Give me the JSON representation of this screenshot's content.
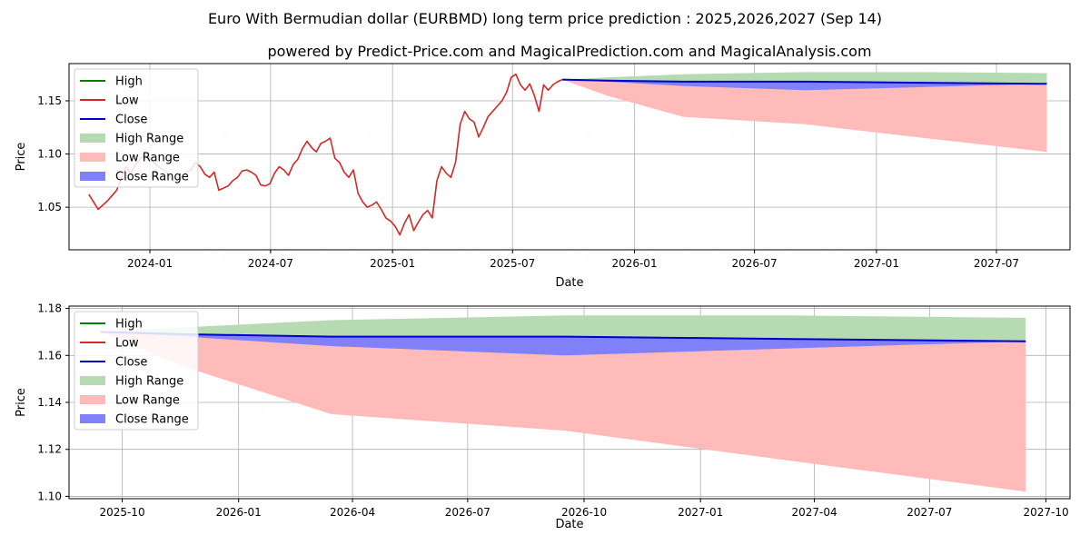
{
  "header": {
    "title": "Euro With Bermudian dollar (EURBMD) long term price prediction : 2025,2026,2027 (Sep 14)",
    "subtitle": "powered by Predict-Price.com and MagicalPrediction.com and MagicalAnalysis.com"
  },
  "watermark": "Predict-Price.com",
  "colors": {
    "high": "#008000",
    "low": "#d62728",
    "close": "#0000cc",
    "high_range": "#b6dbb3",
    "low_range": "#ffbaba",
    "close_range": "#8080f8"
  },
  "chart_data": [
    {
      "type": "line",
      "panel": "top",
      "xlabel": "Date",
      "ylabel": "Price",
      "x_range": [
        "2023-09-01",
        "2027-10-20"
      ],
      "ylim": [
        1.01,
        1.185
      ],
      "x_ticks": [
        "2024-01",
        "2024-07",
        "2025-01",
        "2025-07",
        "2026-01",
        "2026-07",
        "2027-01",
        "2027-07"
      ],
      "y_ticks": [
        1.05,
        1.1,
        1.15
      ],
      "y_tick_labels": [
        "1.05",
        "1.10",
        "1.15"
      ],
      "grid": true,
      "legend": {
        "position": "top-left",
        "entries": [
          "High",
          "Low",
          "Close",
          "High Range",
          "Low Range",
          "Close Range"
        ]
      },
      "history": {
        "series": "Low",
        "points": [
          [
            "2023-10-01",
            1.062
          ],
          [
            "2023-10-08",
            1.055
          ],
          [
            "2023-10-15",
            1.048
          ],
          [
            "2023-10-22",
            1.052
          ],
          [
            "2023-10-29",
            1.056
          ],
          [
            "2023-11-05",
            1.061
          ],
          [
            "2023-11-12",
            1.066
          ],
          [
            "2023-11-19",
            1.078
          ],
          [
            "2023-11-26",
            1.088
          ],
          [
            "2023-12-03",
            1.082
          ],
          [
            "2023-12-10",
            1.09
          ],
          [
            "2023-12-17",
            1.095
          ],
          [
            "2023-12-24",
            1.1
          ],
          [
            "2023-12-31",
            1.097
          ],
          [
            "2024-01-07",
            1.092
          ],
          [
            "2024-01-14",
            1.088
          ],
          [
            "2024-01-21",
            1.085
          ],
          [
            "2024-01-28",
            1.082
          ],
          [
            "2024-02-04",
            1.076
          ],
          [
            "2024-02-11",
            1.072
          ],
          [
            "2024-02-18",
            1.078
          ],
          [
            "2024-02-25",
            1.083
          ],
          [
            "2024-03-03",
            1.085
          ],
          [
            "2024-03-10",
            1.092
          ],
          [
            "2024-03-17",
            1.088
          ],
          [
            "2024-03-24",
            1.081
          ],
          [
            "2024-03-31",
            1.078
          ],
          [
            "2024-04-07",
            1.083
          ],
          [
            "2024-04-14",
            1.066
          ],
          [
            "2024-04-21",
            1.068
          ],
          [
            "2024-04-28",
            1.07
          ],
          [
            "2024-05-05",
            1.075
          ],
          [
            "2024-05-12",
            1.078
          ],
          [
            "2024-05-19",
            1.084
          ],
          [
            "2024-05-26",
            1.085
          ],
          [
            "2024-06-02",
            1.083
          ],
          [
            "2024-06-09",
            1.08
          ],
          [
            "2024-06-16",
            1.071
          ],
          [
            "2024-06-23",
            1.07
          ],
          [
            "2024-06-30",
            1.072
          ],
          [
            "2024-07-07",
            1.082
          ],
          [
            "2024-07-14",
            1.088
          ],
          [
            "2024-07-21",
            1.085
          ],
          [
            "2024-07-28",
            1.08
          ],
          [
            "2024-08-04",
            1.09
          ],
          [
            "2024-08-11",
            1.095
          ],
          [
            "2024-08-18",
            1.105
          ],
          [
            "2024-08-25",
            1.112
          ],
          [
            "2024-09-01",
            1.106
          ],
          [
            "2024-09-08",
            1.102
          ],
          [
            "2024-09-15",
            1.11
          ],
          [
            "2024-09-22",
            1.112
          ],
          [
            "2024-09-29",
            1.115
          ],
          [
            "2024-10-06",
            1.096
          ],
          [
            "2024-10-13",
            1.092
          ],
          [
            "2024-10-20",
            1.083
          ],
          [
            "2024-10-27",
            1.078
          ],
          [
            "2024-11-03",
            1.085
          ],
          [
            "2024-11-10",
            1.063
          ],
          [
            "2024-11-17",
            1.055
          ],
          [
            "2024-11-24",
            1.05
          ],
          [
            "2024-12-01",
            1.052
          ],
          [
            "2024-12-08",
            1.055
          ],
          [
            "2024-12-15",
            1.048
          ],
          [
            "2024-12-22",
            1.04
          ],
          [
            "2024-12-29",
            1.037
          ],
          [
            "2025-01-05",
            1.032
          ],
          [
            "2025-01-12",
            1.024
          ],
          [
            "2025-01-19",
            1.035
          ],
          [
            "2025-01-26",
            1.043
          ],
          [
            "2025-02-02",
            1.028
          ],
          [
            "2025-02-09",
            1.036
          ],
          [
            "2025-02-16",
            1.043
          ],
          [
            "2025-02-23",
            1.047
          ],
          [
            "2025-03-02",
            1.04
          ],
          [
            "2025-03-09",
            1.075
          ],
          [
            "2025-03-16",
            1.088
          ],
          [
            "2025-03-23",
            1.082
          ],
          [
            "2025-03-30",
            1.078
          ],
          [
            "2025-04-06",
            1.092
          ],
          [
            "2025-04-13",
            1.128
          ],
          [
            "2025-04-20",
            1.14
          ],
          [
            "2025-04-27",
            1.133
          ],
          [
            "2025-05-04",
            1.13
          ],
          [
            "2025-05-11",
            1.116
          ],
          [
            "2025-05-18",
            1.125
          ],
          [
            "2025-05-25",
            1.135
          ],
          [
            "2025-06-01",
            1.14
          ],
          [
            "2025-06-08",
            1.145
          ],
          [
            "2025-06-15",
            1.15
          ],
          [
            "2025-06-22",
            1.158
          ],
          [
            "2025-06-29",
            1.172
          ],
          [
            "2025-07-06",
            1.175
          ],
          [
            "2025-07-13",
            1.165
          ],
          [
            "2025-07-20",
            1.16
          ],
          [
            "2025-07-27",
            1.166
          ],
          [
            "2025-08-03",
            1.155
          ],
          [
            "2025-08-10",
            1.14
          ],
          [
            "2025-08-17",
            1.165
          ],
          [
            "2025-08-24",
            1.16
          ],
          [
            "2025-08-31",
            1.165
          ],
          [
            "2025-09-07",
            1.168
          ],
          [
            "2025-09-14",
            1.17
          ]
        ]
      },
      "forecast": {
        "dates": [
          "2025-09-14",
          "2025-11-20",
          "2026-03-15",
          "2026-09-15",
          "2027-03-15",
          "2027-09-15"
        ],
        "high_upper": [
          1.17,
          1.172,
          1.175,
          1.177,
          1.177,
          1.176
        ],
        "low_lower": [
          1.17,
          1.155,
          1.135,
          1.128,
          1.115,
          1.102
        ],
        "close_upper": [
          1.17,
          1.169,
          1.168,
          1.168,
          1.167,
          1.166
        ],
        "close_lower": [
          1.17,
          1.168,
          1.164,
          1.16,
          1.163,
          1.166
        ],
        "close": [
          1.17,
          1.169,
          1.168,
          1.168,
          1.167,
          1.166
        ]
      }
    },
    {
      "type": "area",
      "panel": "bottom",
      "xlabel": "Date",
      "ylabel": "Price",
      "x_range": [
        "2025-08-20",
        "2027-10-20"
      ],
      "ylim": [
        1.099,
        1.181
      ],
      "x_ticks": [
        "2025-10",
        "2026-01",
        "2026-04",
        "2026-07",
        "2026-10",
        "2027-01",
        "2027-04",
        "2027-07",
        "2027-10"
      ],
      "y_ticks": [
        1.1,
        1.12,
        1.14,
        1.16,
        1.18
      ],
      "y_tick_labels": [
        "1.10",
        "1.12",
        "1.14",
        "1.16",
        "1.18"
      ],
      "grid": true,
      "legend": {
        "position": "top-left",
        "entries": [
          "High",
          "Low",
          "Close",
          "High Range",
          "Low Range",
          "Close Range"
        ]
      },
      "forecast": {
        "dates": [
          "2025-09-14",
          "2025-11-20",
          "2026-03-15",
          "2026-09-15",
          "2027-03-15",
          "2027-09-15"
        ],
        "high_upper": [
          1.17,
          1.172,
          1.175,
          1.177,
          1.177,
          1.176
        ],
        "low_lower": [
          1.17,
          1.155,
          1.135,
          1.128,
          1.115,
          1.102
        ],
        "close_upper": [
          1.17,
          1.169,
          1.168,
          1.168,
          1.167,
          1.166
        ],
        "close_lower": [
          1.17,
          1.168,
          1.164,
          1.16,
          1.163,
          1.166
        ],
        "close": [
          1.17,
          1.169,
          1.168,
          1.168,
          1.167,
          1.166
        ]
      }
    }
  ]
}
